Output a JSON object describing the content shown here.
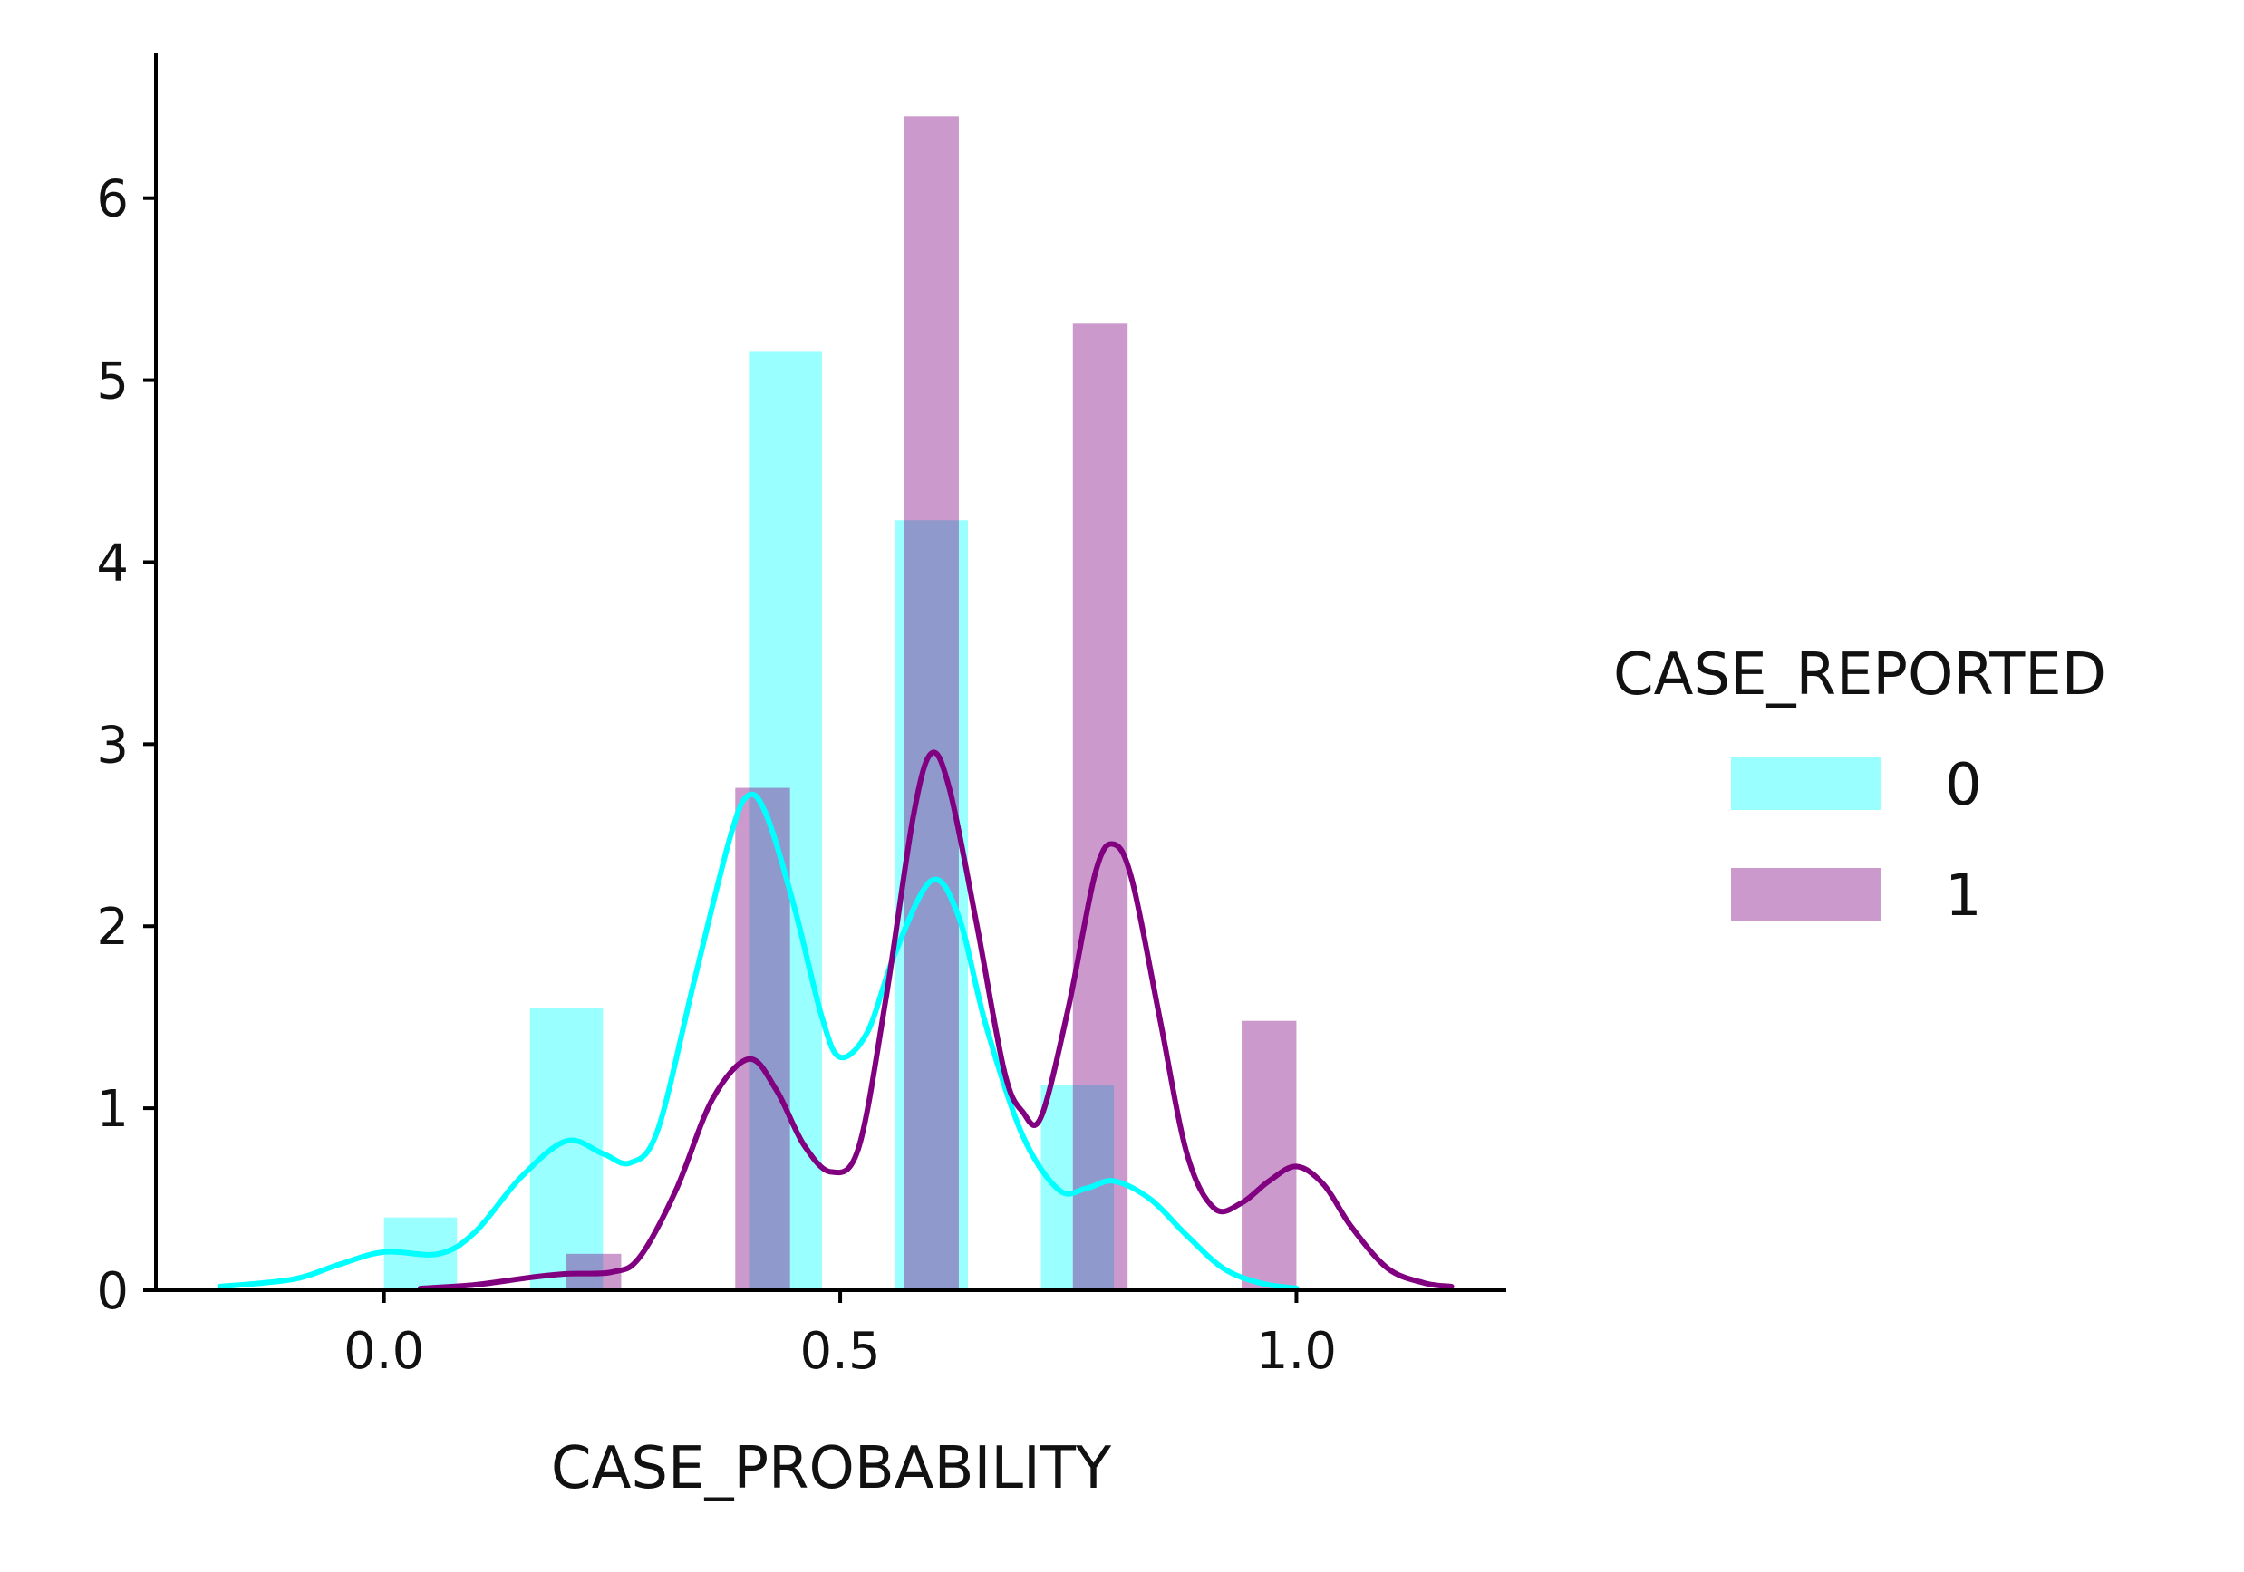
{
  "chart_data": {
    "type": "histogram",
    "title": "",
    "xlabel": "CASE_PROBABILITY",
    "ylabel": "",
    "xlim": [
      -0.25,
      1.23
    ],
    "ylim": [
      0,
      6.8
    ],
    "xticks": [
      {
        "value": 0.0,
        "label": "0.0"
      },
      {
        "value": 0.5,
        "label": "0.5"
      },
      {
        "value": 1.0,
        "label": "1.0"
      }
    ],
    "yticks": [
      {
        "value": 0,
        "label": "0"
      },
      {
        "value": 1,
        "label": "1"
      },
      {
        "value": 2,
        "label": "2"
      },
      {
        "value": 3,
        "label": "3"
      },
      {
        "value": 4,
        "label": "4"
      },
      {
        "value": 5,
        "label": "5"
      },
      {
        "value": 6,
        "label": "6"
      }
    ],
    "grid": false,
    "legend": {
      "title": "CASE_REPORTED",
      "position": "right"
    },
    "series": [
      {
        "name": "0",
        "color": "#00ffff",
        "bar_opacity": 0.4,
        "bars": [
          {
            "x0": 0.0,
            "x1": 0.08,
            "value": 0.4
          },
          {
            "x0": 0.16,
            "x1": 0.24,
            "value": 1.55
          },
          {
            "x0": 0.4,
            "x1": 0.48,
            "value": 5.16
          },
          {
            "x0": 0.56,
            "x1": 0.64,
            "value": 4.23
          },
          {
            "x0": 0.72,
            "x1": 0.8,
            "value": 1.13
          }
        ],
        "kde": [
          [
            -0.18,
            0.02
          ],
          [
            -0.1,
            0.06
          ],
          [
            -0.05,
            0.14
          ],
          [
            0.0,
            0.21
          ],
          [
            0.06,
            0.2
          ],
          [
            0.1,
            0.32
          ],
          [
            0.15,
            0.62
          ],
          [
            0.2,
            0.82
          ],
          [
            0.24,
            0.75
          ],
          [
            0.27,
            0.7
          ],
          [
            0.3,
            0.88
          ],
          [
            0.34,
            1.7
          ],
          [
            0.38,
            2.5
          ],
          [
            0.4,
            2.72
          ],
          [
            0.42,
            2.6
          ],
          [
            0.45,
            2.1
          ],
          [
            0.48,
            1.5
          ],
          [
            0.5,
            1.28
          ],
          [
            0.53,
            1.42
          ],
          [
            0.56,
            1.85
          ],
          [
            0.6,
            2.25
          ],
          [
            0.63,
            2.05
          ],
          [
            0.66,
            1.45
          ],
          [
            0.7,
            0.85
          ],
          [
            0.74,
            0.55
          ],
          [
            0.77,
            0.56
          ],
          [
            0.8,
            0.6
          ],
          [
            0.84,
            0.5
          ],
          [
            0.88,
            0.3
          ],
          [
            0.92,
            0.12
          ],
          [
            0.96,
            0.04
          ],
          [
            1.0,
            0.01
          ]
        ]
      },
      {
        "name": "1",
        "color": "#800080",
        "bar_opacity": 0.4,
        "bars": [
          {
            "x0": 0.2,
            "x1": 0.26,
            "value": 0.2
          },
          {
            "x0": 0.385,
            "x1": 0.445,
            "value": 2.76
          },
          {
            "x0": 0.57,
            "x1": 0.63,
            "value": 6.45
          },
          {
            "x0": 0.755,
            "x1": 0.815,
            "value": 5.31
          },
          {
            "x0": 0.94,
            "x1": 1.0,
            "value": 1.48
          }
        ],
        "kde": [
          [
            0.04,
            0.01
          ],
          [
            0.1,
            0.03
          ],
          [
            0.16,
            0.07
          ],
          [
            0.2,
            0.09
          ],
          [
            0.25,
            0.1
          ],
          [
            0.28,
            0.18
          ],
          [
            0.32,
            0.55
          ],
          [
            0.36,
            1.05
          ],
          [
            0.4,
            1.27
          ],
          [
            0.43,
            1.1
          ],
          [
            0.46,
            0.8
          ],
          [
            0.49,
            0.65
          ],
          [
            0.52,
            0.78
          ],
          [
            0.55,
            1.6
          ],
          [
            0.58,
            2.6
          ],
          [
            0.6,
            2.95
          ],
          [
            0.62,
            2.75
          ],
          [
            0.65,
            2.0
          ],
          [
            0.68,
            1.2
          ],
          [
            0.7,
            0.98
          ],
          [
            0.72,
            0.95
          ],
          [
            0.75,
            1.55
          ],
          [
            0.78,
            2.3
          ],
          [
            0.8,
            2.45
          ],
          [
            0.82,
            2.25
          ],
          [
            0.85,
            1.5
          ],
          [
            0.88,
            0.75
          ],
          [
            0.91,
            0.45
          ],
          [
            0.94,
            0.48
          ],
          [
            0.97,
            0.6
          ],
          [
            1.0,
            0.68
          ],
          [
            1.03,
            0.58
          ],
          [
            1.06,
            0.35
          ],
          [
            1.1,
            0.12
          ],
          [
            1.14,
            0.04
          ],
          [
            1.17,
            0.02
          ]
        ]
      }
    ]
  }
}
